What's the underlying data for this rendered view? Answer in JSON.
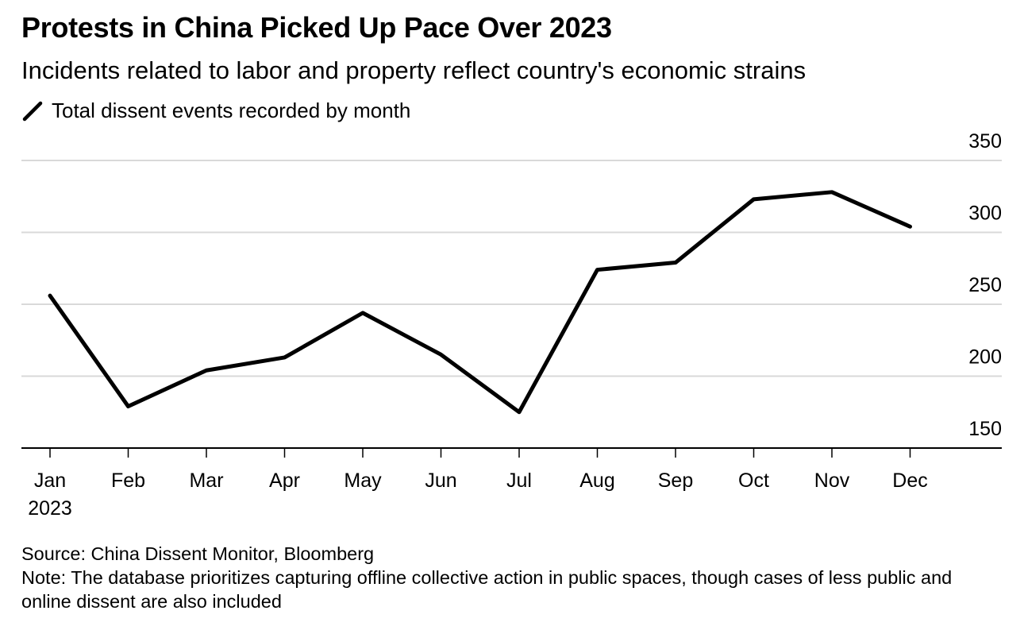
{
  "header": {
    "title": "Protests in China Picked Up Pace Over 2023",
    "subtitle": "Incidents related to labor and property reflect country's economic strains"
  },
  "chart_data": {
    "type": "line",
    "title": "Protests in China Picked Up Pace Over 2023",
    "subtitle": "Incidents related to labor and property reflect country's economic strains",
    "xlabel": "",
    "ylabel": "",
    "categories": [
      "Jan",
      "Feb",
      "Mar",
      "Apr",
      "May",
      "Jun",
      "Jul",
      "Aug",
      "Sep",
      "Oct",
      "Nov",
      "Dec"
    ],
    "year_label": "2023",
    "series": [
      {
        "name": "Total dissent events recorded by month",
        "color": "#000000",
        "values": [
          256,
          179,
          204,
          213,
          244,
          215,
          175,
          274,
          279,
          323,
          328,
          304
        ]
      }
    ],
    "ylim": [
      150,
      350
    ],
    "yticks": [
      150,
      200,
      250,
      300,
      350
    ],
    "grid": true,
    "y_axis_side": "right",
    "legend_position": "top-left",
    "colors": {
      "line": "#000000",
      "grid": "#d9d9d9",
      "axis": "#000000",
      "text": "#000000"
    }
  },
  "footer": {
    "source": "Source: China Dissent Monitor, Bloomberg",
    "note": "Note: The database prioritizes capturing offline collective action in public spaces, though cases of less public and online dissent are also included"
  }
}
